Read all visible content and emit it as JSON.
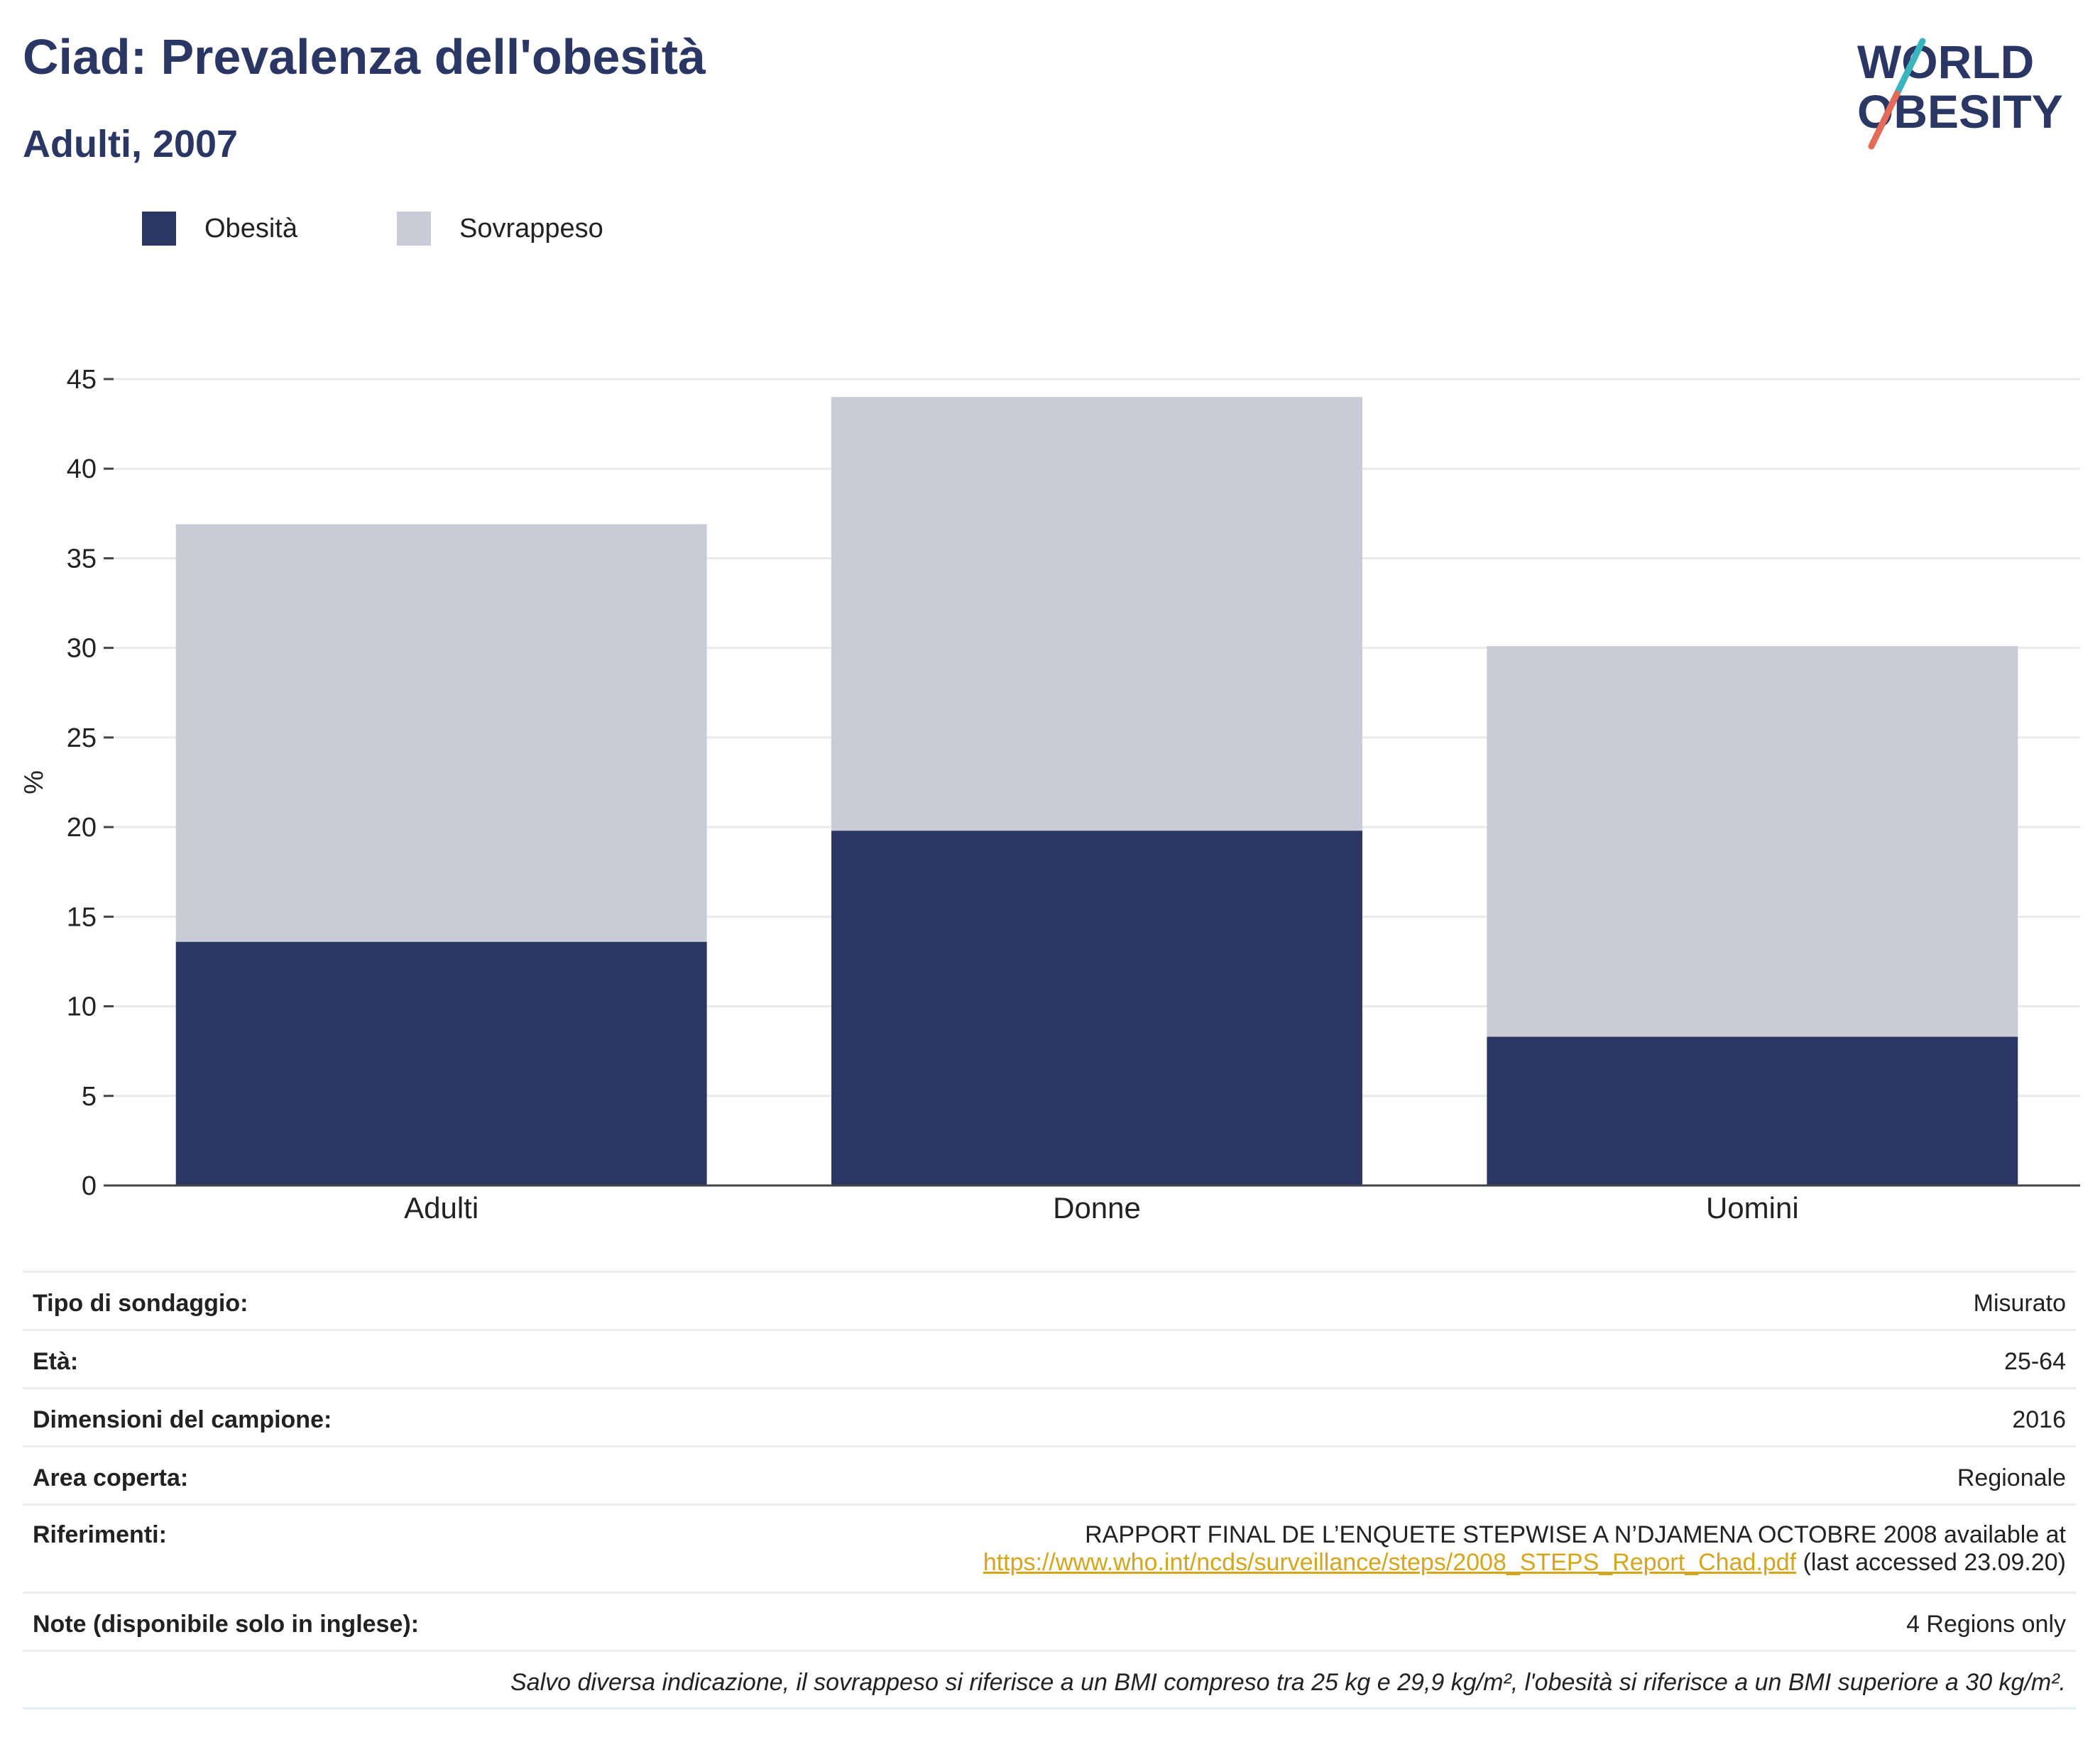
{
  "header": {
    "title": "Ciad: Prevalenza dell'obesità",
    "subtitle": "Adulti, 2007"
  },
  "logo": {
    "line1": "WORLD",
    "line2": "OBESITY",
    "colors": {
      "text": "#2a3663",
      "slash_top": "#3ab5c0",
      "slash_bottom": "#e46a5a"
    }
  },
  "legend": {
    "items": [
      {
        "label": "Obesità",
        "color": "#2a3663"
      },
      {
        "label": "Sovrappeso",
        "color": "#c9cbd7"
      }
    ]
  },
  "chart_data": {
    "type": "bar",
    "stacked": true,
    "categories": [
      "Adulti",
      "Donne",
      "Uomini"
    ],
    "series": [
      {
        "name": "Obesità",
        "color": "#2a3663",
        "values": [
          13.6,
          19.8,
          8.3
        ]
      },
      {
        "name": "Sovrappeso",
        "color": "#c9cbd7",
        "values": [
          23.3,
          24.2,
          21.8
        ]
      }
    ],
    "ylabel": "%",
    "ylim": [
      0,
      45
    ],
    "yticks": [
      0,
      5,
      10,
      15,
      20,
      25,
      30,
      35,
      40,
      45
    ],
    "grid": true,
    "legend_position": "top-left"
  },
  "info": {
    "rows": [
      {
        "label": "Tipo di sondaggio:",
        "value": "Misurato"
      },
      {
        "label": "Età:",
        "value": "25-64"
      },
      {
        "label": "Dimensioni del campione:",
        "value": "2016"
      },
      {
        "label": "Area coperta:",
        "value": "Regionale"
      }
    ],
    "references": {
      "label": "Riferimenti:",
      "text": "RAPPORT FINAL DE L’ENQUETE STEPWISE A N’DJAMENA OCTOBRE 2008 available at",
      "link": "https://www.who.int/ncds/surveillance/steps/2008_STEPS_Report_Chad.pdf",
      "suffix": " (last accessed 23.09.20)"
    },
    "notes": {
      "label": "Note (disponibile solo in inglese):",
      "value": "4 Regions only"
    },
    "footnote": "Salvo diversa indicazione, il sovrappeso si riferisce a un BMI compreso tra 25 kg e 29,9 kg/m², l'obesità si riferisce a un BMI superiore a 30 kg/m²."
  }
}
